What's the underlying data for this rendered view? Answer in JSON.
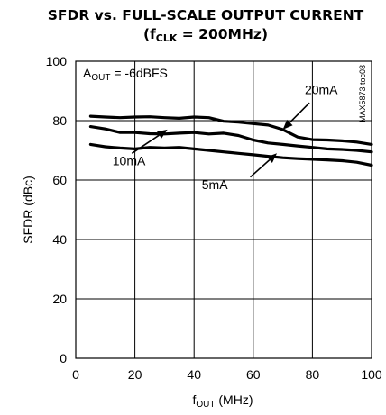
{
  "chart_data": {
    "type": "line",
    "title": "SFDR vs. FULL-SCALE OUTPUT CURRENT",
    "subtitle": {
      "prefix": "(f",
      "sub": "CLK",
      "suffix": " = 200MHz)"
    },
    "xlabel": {
      "main": "f",
      "sub": "OUT",
      "suffix": " (MHz)"
    },
    "ylabel": "SFDR (dBc)",
    "xlim": [
      0,
      100
    ],
    "ylim": [
      0,
      100
    ],
    "xticks": [
      0,
      20,
      40,
      60,
      80,
      100
    ],
    "yticks": [
      0,
      20,
      40,
      60,
      80,
      100
    ],
    "grid": true,
    "annotation_condition": {
      "main": "A",
      "sub": "OUT",
      "suffix": " = -6dBFS"
    },
    "side_label": "MAX5873 toc08",
    "series": [
      {
        "name": "20mA",
        "x": [
          5,
          10,
          15,
          20,
          25,
          30,
          35,
          40,
          45,
          50,
          55,
          60,
          65,
          70,
          75,
          80,
          85,
          90,
          95,
          100
        ],
        "y": [
          81.5,
          81.2,
          81.0,
          81.2,
          81.3,
          81.0,
          80.8,
          81.2,
          81.0,
          79.8,
          79.5,
          79.0,
          78.5,
          77.0,
          74.5,
          73.6,
          73.5,
          73.2,
          72.8,
          72.0
        ]
      },
      {
        "name": "10mA",
        "x": [
          5,
          10,
          15,
          20,
          25,
          30,
          35,
          40,
          45,
          50,
          55,
          60,
          65,
          70,
          75,
          80,
          85,
          90,
          95,
          100
        ],
        "y": [
          78.0,
          77.2,
          76.0,
          76.0,
          75.6,
          75.5,
          75.8,
          76.0,
          75.5,
          75.8,
          75.0,
          73.5,
          72.5,
          72.0,
          71.5,
          71.0,
          70.5,
          70.3,
          70.0,
          69.5
        ]
      },
      {
        "name": "5mA",
        "x": [
          5,
          10,
          15,
          20,
          25,
          30,
          35,
          40,
          45,
          50,
          55,
          60,
          65,
          70,
          75,
          80,
          85,
          90,
          95,
          100
        ],
        "y": [
          72.0,
          71.2,
          70.8,
          70.5,
          71.0,
          70.8,
          71.0,
          70.5,
          70.0,
          69.5,
          69.0,
          68.5,
          68.0,
          67.5,
          67.2,
          67.0,
          66.8,
          66.5,
          66.0,
          65.0
        ]
      }
    ],
    "labels": [
      {
        "text": "20mA",
        "series": "20mA",
        "text_at": [
          83,
          89
        ],
        "arrow_from": [
          79,
          86
        ],
        "arrow_to": [
          70,
          77
        ]
      },
      {
        "text": "10mA",
        "series": "10mA",
        "text_at": [
          18,
          65
        ],
        "arrow_from": [
          19,
          69
        ],
        "arrow_to": [
          31,
          77
        ]
      },
      {
        "text": "5mA",
        "series": "5mA",
        "text_at": [
          47,
          57
        ],
        "arrow_from": [
          59,
          61
        ],
        "arrow_to": [
          68,
          69
        ]
      }
    ]
  }
}
